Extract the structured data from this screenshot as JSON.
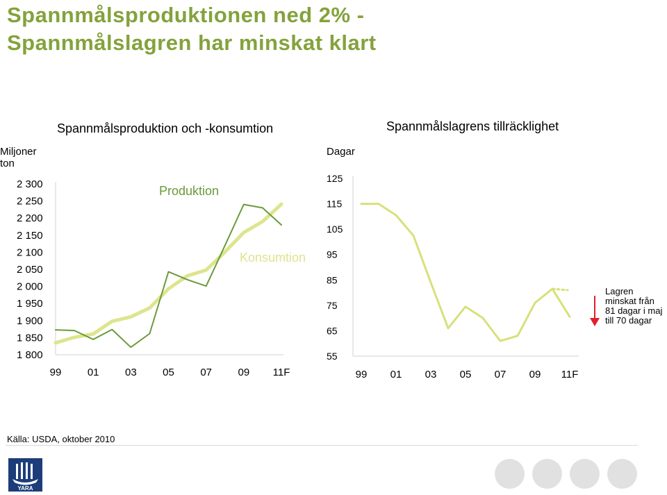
{
  "title": {
    "line1": "Spannmålsproduktionen ned 2%  -",
    "line2": "Spannmålslagren har minskat klart"
  },
  "note": {
    "line1": "Lagren",
    "line2": "minskat från",
    "line3": "81 dagar i maj",
    "line4": "till 70 dagar"
  },
  "source": "Källa: USDA, oktober 2010",
  "logo_text": "YARA",
  "colors": {
    "title": "#84a23c",
    "production": "#6a9a3a",
    "consumption": "#dde58e",
    "stocks": "#d8e07a",
    "arrow": "#e0202a",
    "axis": "#d0d0d0"
  },
  "chart_data": [
    {
      "type": "line",
      "title": "Spannmålsproduktion och -konsumtion",
      "ylabel_line1": "Miljoner",
      "ylabel_line2": "ton",
      "xlabel": "",
      "ylim": [
        1800,
        2300
      ],
      "yticks": [
        1800,
        1850,
        1900,
        1950,
        2000,
        2050,
        2100,
        2150,
        2200,
        2250,
        2300
      ],
      "ytick_labels": [
        "1 800",
        "1 850",
        "1 900",
        "1 950",
        "2 000",
        "2 050",
        "2 100",
        "2 150",
        "2 200",
        "2 250",
        "2 300"
      ],
      "x": [
        "99",
        "00",
        "01",
        "02",
        "03",
        "04",
        "05",
        "06",
        "07",
        "08",
        "09",
        "10",
        "11F"
      ],
      "xtick_labels": [
        "99",
        "01",
        "03",
        "05",
        "07",
        "09",
        "11F"
      ],
      "grid": false,
      "series": [
        {
          "name": "Produktion",
          "values": [
            1873,
            1871,
            1845,
            1874,
            1822,
            1862,
            2043,
            2020,
            2001,
            2120,
            2240,
            2230,
            2180
          ]
        },
        {
          "name": "Konsumtion",
          "values": [
            1835,
            1851,
            1861,
            1898,
            1911,
            1937,
            1993,
            2031,
            2048,
            2101,
            2158,
            2190,
            2241
          ]
        }
      ]
    },
    {
      "type": "line",
      "title": "Spannmålslagrens tillräcklighet",
      "ylabel": "Dagar",
      "xlabel": "",
      "ylim": [
        55,
        125
      ],
      "yticks": [
        55,
        65,
        75,
        85,
        95,
        105,
        115,
        125
      ],
      "x": [
        "99",
        "00",
        "01",
        "02",
        "03",
        "04",
        "05",
        "06",
        "07",
        "08",
        "09",
        "10",
        "11F"
      ],
      "xtick_labels": [
        "99",
        "01",
        "03",
        "05",
        "07",
        "09",
        "11F"
      ],
      "grid": false,
      "series": [
        {
          "name": "",
          "values": [
            115,
            115,
            110.5,
            102.5,
            84,
            66,
            74.5,
            70,
            61,
            63,
            76,
            81.5,
            70.5
          ]
        }
      ],
      "projection_values": [
        81.5,
        81
      ]
    }
  ]
}
